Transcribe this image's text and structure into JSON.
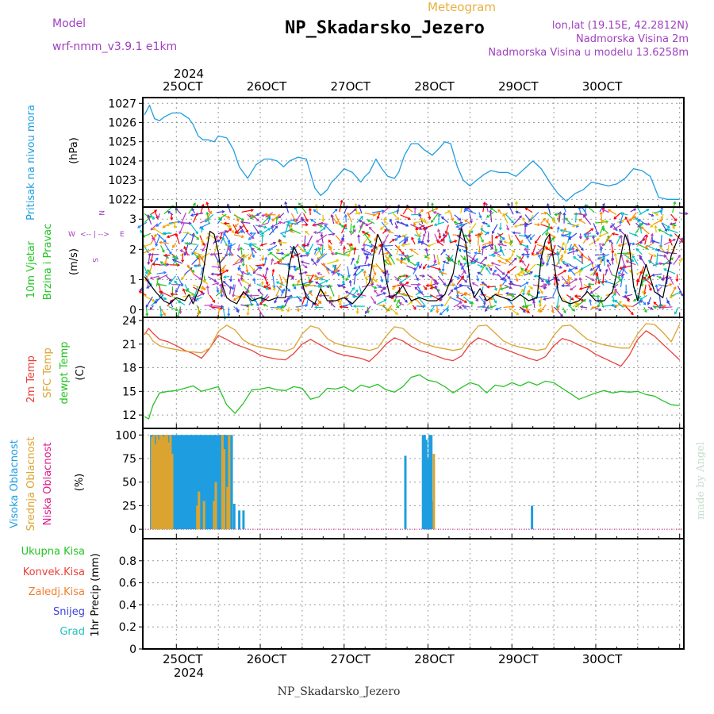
{
  "header": {
    "model_label": "Model",
    "model_name": "wrf-nmm_v3.9.1  e1km",
    "station": "NP_Skadarsko_Jezero",
    "meteogram": "Meteogram",
    "lonlat": "lon,lat (19.15E, 42.2812N)",
    "altitude": "Nadmorska Visina 2m",
    "model_altitude": "Nadmorska Visina u modelu 13.6258m",
    "year": "2024",
    "footer_station": "NP_Skadarsko_Jezero",
    "watermark": "made by Angel"
  },
  "colors": {
    "pressure": "#1e9ee0",
    "t2m": "#e8413a",
    "sfc": "#dba430",
    "dew": "#29c229",
    "high": "#1e9ee0",
    "mid": "#dba430",
    "low": "#e01e8c",
    "wind_label": "#22c422",
    "arrow_label": "#a040c0"
  },
  "panels": {
    "pressure": {
      "label1": "Pritisak na nivou mora",
      "unit": "(hPa)"
    },
    "wind": {
      "label1": "10m Vjetar",
      "label2": "Brzina i Pravac",
      "unit": "(m/s)",
      "compass_n": "N",
      "compass_s": "S",
      "compass_e": "E",
      "compass_w": "W"
    },
    "temp": {
      "label1": "2m Temp",
      "label2": "SFC Temp",
      "label3": "dewpt Temp",
      "unit": "(C)"
    },
    "cloud": {
      "label1": "Visoka Oblacnost",
      "label2": "Srednja Oblacnost",
      "label3": "Niska Oblacnost",
      "unit": "(%)"
    },
    "precip": {
      "labels": [
        "Ukupna Kisa",
        "Konvek.Kisa",
        "Zaledj.Kisa",
        "Snijeg",
        "Grad"
      ],
      "unit": "1hr Precip (mm)"
    }
  },
  "chart_data": [
    {
      "type": "line",
      "name": "pressure",
      "ylabel": "(hPa)",
      "ylim": [
        1021.6,
        1027.3
      ],
      "yticks": [
        1022,
        1023,
        1024,
        1025,
        1026,
        1027
      ],
      "xlim": [
        24.6,
        31.05
      ],
      "xticks": [
        "25OCT",
        "26OCT",
        "27OCT",
        "28OCT",
        "29OCT",
        "30OCT"
      ],
      "x": [
        24.62,
        24.68,
        24.74,
        24.8,
        24.86,
        24.95,
        25.05,
        25.15,
        25.2,
        25.26,
        25.32,
        25.38,
        25.45,
        25.5,
        25.6,
        25.68,
        25.75,
        25.85,
        25.95,
        26.05,
        26.12,
        26.2,
        26.28,
        26.35,
        26.45,
        26.55,
        26.65,
        26.72,
        26.8,
        26.85,
        26.9,
        27.0,
        27.05,
        27.1,
        27.2,
        27.25,
        27.3,
        27.38,
        27.45,
        27.52,
        27.6,
        27.65,
        27.72,
        27.8,
        27.88,
        27.95,
        28.05,
        28.12,
        28.2,
        28.27,
        28.35,
        28.42,
        28.5,
        28.58,
        28.67,
        28.75,
        28.85,
        28.95,
        29.05,
        29.15,
        29.25,
        29.35,
        29.45,
        29.55,
        29.65,
        29.75,
        29.85,
        29.95,
        30.05,
        30.15,
        30.25,
        30.35,
        30.45,
        30.55,
        30.65,
        30.75,
        30.85,
        31.0
      ],
      "values": [
        1026.4,
        1026.9,
        1026.2,
        1026.1,
        1026.3,
        1026.5,
        1026.5,
        1026.2,
        1025.9,
        1025.3,
        1025.1,
        1025.1,
        1025.0,
        1025.3,
        1025.2,
        1024.6,
        1023.7,
        1023.1,
        1023.8,
        1024.1,
        1024.1,
        1024.0,
        1023.7,
        1024.0,
        1024.2,
        1024.1,
        1022.6,
        1022.2,
        1022.5,
        1022.9,
        1023.1,
        1023.6,
        1023.5,
        1023.4,
        1022.9,
        1023.2,
        1023.4,
        1024.1,
        1023.6,
        1023.2,
        1023.1,
        1023.4,
        1024.3,
        1024.9,
        1024.9,
        1024.6,
        1024.3,
        1024.6,
        1025.0,
        1024.9,
        1023.7,
        1023.0,
        1022.7,
        1023.0,
        1023.3,
        1023.5,
        1023.4,
        1023.4,
        1023.2,
        1023.6,
        1024.0,
        1023.6,
        1022.9,
        1022.3,
        1021.9,
        1022.3,
        1022.5,
        1022.9,
        1022.8,
        1022.7,
        1022.8,
        1023.1,
        1023.6,
        1023.5,
        1023.2,
        1022.1,
        1022.0,
        1022.0
      ]
    },
    {
      "type": "line",
      "name": "wind",
      "ylabel": "(m/s)",
      "ylim": [
        -0.25,
        3.4
      ],
      "yticks": [
        0,
        1,
        2,
        3
      ],
      "x": [
        24.62,
        24.75,
        24.85,
        24.92,
        25.0,
        25.1,
        25.15,
        25.2,
        25.3,
        25.35,
        25.4,
        25.45,
        25.5,
        25.55,
        25.6,
        25.65,
        25.72,
        25.8,
        25.9,
        26.0,
        26.1,
        26.2,
        26.3,
        26.35,
        26.4,
        26.45,
        26.5,
        26.55,
        26.6,
        26.65,
        26.72,
        26.8,
        26.9,
        27.0,
        27.1,
        27.2,
        27.3,
        27.35,
        27.4,
        27.45,
        27.5,
        27.55,
        27.62,
        27.7,
        27.8,
        27.9,
        28.0,
        28.1,
        28.2,
        28.3,
        28.35,
        28.4,
        28.45,
        28.5,
        28.55,
        28.62,
        28.7,
        28.8,
        28.9,
        29.0,
        29.1,
        29.2,
        29.3,
        29.35,
        29.4,
        29.45,
        29.5,
        29.55,
        29.6,
        29.7,
        29.8,
        29.9,
        30.0,
        30.1,
        30.2,
        30.3,
        30.35,
        30.4,
        30.45,
        30.5,
        30.55,
        30.6,
        30.7,
        30.8,
        30.9,
        31.0
      ],
      "values": [
        1.1,
        0.6,
        0.3,
        0.2,
        0.4,
        0.3,
        0.5,
        0.2,
        0.9,
        1.8,
        2.6,
        2.5,
        1.9,
        0.8,
        0.4,
        0.3,
        0.2,
        0.6,
        0.3,
        0.4,
        0.3,
        0.4,
        0.4,
        1.5,
        2.1,
        1.8,
        0.9,
        0.4,
        0.3,
        0.2,
        0.7,
        0.3,
        0.3,
        0.4,
        0.2,
        0.5,
        0.9,
        1.8,
        2.5,
        2.2,
        1.0,
        0.4,
        0.5,
        0.8,
        0.3,
        0.4,
        0.3,
        0.3,
        0.5,
        1.2,
        2.0,
        2.7,
        2.2,
        0.9,
        0.4,
        0.7,
        0.3,
        0.5,
        0.4,
        0.3,
        0.5,
        0.3,
        0.4,
        1.7,
        2.3,
        2.5,
        1.6,
        0.6,
        0.3,
        0.2,
        0.3,
        0.6,
        0.3,
        0.3,
        0.6,
        1.8,
        2.5,
        2.1,
        0.8,
        0.3,
        1.0,
        1.5,
        0.6,
        0.4,
        1.8,
        2.5
      ]
    },
    {
      "type": "line",
      "name": "temperature",
      "ylabel": "(C)",
      "ylim": [
        10.3,
        24.4
      ],
      "yticks": [
        12,
        15,
        18,
        21,
        24
      ],
      "x": [
        24.62,
        24.67,
        24.72,
        24.8,
        24.9,
        25.0,
        25.1,
        25.2,
        25.3,
        25.4,
        25.5,
        25.6,
        25.7,
        25.8,
        25.9,
        26.0,
        26.1,
        26.2,
        26.3,
        26.4,
        26.5,
        26.6,
        26.7,
        26.8,
        26.9,
        27.0,
        27.1,
        27.2,
        27.3,
        27.4,
        27.5,
        27.6,
        27.7,
        27.8,
        27.9,
        28.0,
        28.1,
        28.2,
        28.3,
        28.4,
        28.5,
        28.6,
        28.7,
        28.8,
        28.9,
        29.0,
        29.1,
        29.2,
        29.3,
        29.4,
        29.5,
        29.6,
        29.7,
        29.8,
        29.9,
        30.0,
        30.1,
        30.2,
        30.3,
        30.4,
        30.5,
        30.6,
        30.7,
        30.8,
        30.9,
        31.0
      ],
      "series": [
        {
          "name": "2m Temp",
          "values": [
            22.2,
            23.0,
            22.4,
            21.6,
            21.3,
            20.8,
            20.2,
            19.8,
            19.2,
            20.5,
            22.1,
            21.6,
            21.0,
            20.6,
            20.2,
            19.6,
            19.3,
            19.1,
            19.0,
            19.8,
            21.0,
            21.6,
            21.0,
            20.4,
            19.9,
            19.6,
            19.4,
            19.2,
            18.8,
            19.8,
            21.0,
            21.8,
            21.4,
            20.7,
            20.2,
            19.9,
            19.5,
            19.1,
            18.9,
            19.5,
            21.0,
            21.8,
            21.4,
            20.8,
            20.4,
            20.0,
            19.6,
            19.2,
            18.9,
            19.4,
            20.8,
            21.7,
            21.4,
            20.9,
            20.4,
            19.7,
            19.2,
            18.7,
            18.2,
            19.6,
            21.6,
            22.7,
            22.0,
            21.0,
            20.0,
            19.0
          ]
        },
        {
          "name": "SFC Temp",
          "values": [
            22.5,
            22.2,
            21.4,
            20.8,
            20.5,
            20.3,
            20.1,
            20.0,
            19.9,
            20.5,
            22.6,
            23.4,
            22.8,
            21.5,
            20.9,
            20.6,
            20.4,
            20.3,
            20.1,
            20.5,
            22.3,
            23.3,
            23.0,
            21.7,
            21.1,
            20.8,
            20.6,
            20.4,
            20.2,
            20.5,
            22.0,
            23.2,
            23.0,
            22.0,
            21.3,
            20.9,
            20.6,
            20.4,
            20.2,
            20.4,
            22.0,
            23.3,
            23.4,
            22.4,
            21.4,
            20.9,
            20.6,
            20.4,
            20.2,
            20.4,
            22.1,
            23.3,
            23.4,
            22.5,
            21.6,
            21.2,
            20.9,
            20.7,
            20.5,
            20.5,
            22.3,
            23.6,
            23.5,
            22.5,
            21.3,
            23.5
          ]
        },
        {
          "name": "dewpt Temp",
          "values": [
            11.8,
            11.5,
            13.2,
            14.8,
            15.0,
            15.1,
            15.4,
            15.7,
            15.0,
            15.3,
            15.6,
            13.3,
            12.2,
            13.5,
            15.2,
            15.3,
            15.5,
            15.2,
            15.1,
            15.6,
            15.4,
            14.0,
            14.3,
            15.4,
            15.3,
            15.6,
            15.0,
            15.8,
            15.5,
            15.9,
            15.2,
            14.9,
            15.6,
            16.8,
            17.1,
            16.4,
            16.2,
            15.6,
            14.8,
            15.5,
            16.1,
            15.8,
            14.8,
            15.8,
            15.6,
            16.1,
            15.7,
            16.2,
            15.8,
            16.3,
            16.1,
            15.4,
            14.7,
            14.0,
            14.4,
            14.8,
            15.1,
            14.8,
            15.0,
            14.9,
            15.0,
            14.6,
            14.4,
            13.8,
            13.3,
            13.2
          ]
        }
      ]
    },
    {
      "type": "bar",
      "name": "cloud",
      "ylabel": "(%)",
      "ylim": [
        -10,
        107
      ],
      "yticks": [
        0,
        25,
        50,
        75,
        100
      ],
      "series": [
        {
          "name": "Visoka Oblacnost",
          "x": [
            24.7,
            24.72,
            24.74,
            24.76,
            24.78,
            24.8,
            24.82,
            24.84,
            24.86,
            24.88,
            24.9,
            24.92,
            24.94,
            24.96,
            24.98,
            25.0,
            25.02,
            25.04,
            25.06,
            25.08,
            25.1,
            25.12,
            25.14,
            25.16,
            25.18,
            25.2,
            25.22,
            25.24,
            25.26,
            25.28,
            25.3,
            25.32,
            25.34,
            25.36,
            25.38,
            25.4,
            25.42,
            25.44,
            25.46,
            25.48,
            25.5,
            25.52,
            25.54,
            25.56,
            25.58,
            25.6,
            25.62,
            25.64,
            25.66,
            25.69,
            25.75,
            25.8,
            27.73,
            27.94,
            27.96,
            27.98,
            28.0,
            28.02,
            28.04,
            28.06,
            29.24
          ],
          "values": [
            100,
            100,
            100,
            100,
            100,
            100,
            100,
            100,
            100,
            100,
            100,
            100,
            100,
            100,
            100,
            100,
            100,
            100,
            100,
            100,
            100,
            100,
            100,
            100,
            100,
            100,
            100,
            100,
            100,
            100,
            100,
            100,
            100,
            100,
            100,
            100,
            100,
            100,
            100,
            100,
            100,
            100,
            100,
            100,
            100,
            100,
            100,
            100,
            100,
            27,
            20,
            20,
            78,
            100,
            100,
            95,
            75,
            100,
            100,
            30,
            25
          ]
        },
        {
          "name": "Srednja Oblacnost",
          "x": [
            24.71,
            24.73,
            24.75,
            24.77,
            24.79,
            24.81,
            24.83,
            24.85,
            24.87,
            24.89,
            24.91,
            24.93,
            24.95,
            25.25,
            25.27,
            25.33,
            25.45,
            25.47,
            25.55,
            25.57,
            25.61,
            25.63,
            28.07
          ],
          "values": [
            98,
            100,
            90,
            100,
            95,
            100,
            100,
            98,
            100,
            100,
            92,
            100,
            80,
            25,
            40,
            30,
            30,
            50,
            100,
            85,
            45,
            100,
            80
          ]
        },
        {
          "name": "Niska Oblacnost",
          "x": [],
          "values": []
        }
      ]
    },
    {
      "type": "bar",
      "name": "precip",
      "ylabel": "1hr Precip (mm)",
      "ylim": [
        0,
        1.0
      ],
      "yticks": [
        0,
        0.2,
        0.4,
        0.6,
        0.8
      ],
      "series": [
        {
          "name": "Ukupna Kisa",
          "values": []
        },
        {
          "name": "Konvek.Kisa",
          "values": []
        },
        {
          "name": "Zaledj.Kisa",
          "values": []
        },
        {
          "name": "Snijeg",
          "values": []
        },
        {
          "name": "Grad",
          "values": []
        }
      ]
    }
  ]
}
